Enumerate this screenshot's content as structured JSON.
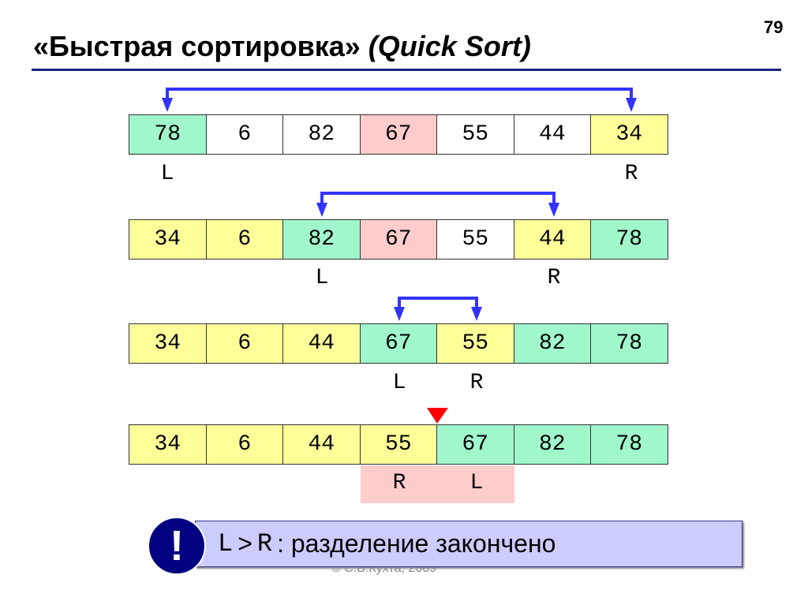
{
  "title": {
    "main": "«Быстрая сортировка»",
    "italic": "(Quick Sort)"
  },
  "page_number": "79",
  "colors": {
    "green": "#a0f7cc",
    "yellow": "#ffff99",
    "pink": "#ffcccc",
    "white": "#ffffff",
    "arrow": "#3333ff",
    "marker": "#ff0000"
  },
  "rows": [
    {
      "values": [
        "78",
        "6",
        "82",
        "67",
        "55",
        "44",
        "34"
      ],
      "fills": [
        "green",
        "white",
        "white",
        "pink",
        "white",
        "white",
        "yellow"
      ],
      "L": "L",
      "R": "R",
      "L_index": 0,
      "R_index": 6
    },
    {
      "values": [
        "34",
        "6",
        "82",
        "67",
        "55",
        "44",
        "78"
      ],
      "fills": [
        "yellow",
        "yellow",
        "green",
        "pink",
        "white",
        "yellow",
        "green"
      ],
      "L": "L",
      "R": "R",
      "L_index": 2,
      "R_index": 5
    },
    {
      "values": [
        "34",
        "6",
        "44",
        "67",
        "55",
        "82",
        "78"
      ],
      "fills": [
        "yellow",
        "yellow",
        "yellow",
        "green",
        "yellow",
        "green",
        "green"
      ],
      "L": "L",
      "R": "R",
      "L_index": 3,
      "R_index": 4
    },
    {
      "values": [
        "34",
        "6",
        "44",
        "55",
        "67",
        "82",
        "78"
      ],
      "fills": [
        "yellow",
        "yellow",
        "yellow",
        "yellow",
        "green",
        "green",
        "green"
      ],
      "L": "L",
      "R": "R",
      "L_index": 4,
      "R_index": 3
    }
  ],
  "footer": "© С.В.Кухта, 2009",
  "message": {
    "icon": "exclamation-icon",
    "icon_text": "!",
    "lhs": "L",
    "op": ">",
    "rhs": "R",
    "text": ": разделение закончено"
  }
}
